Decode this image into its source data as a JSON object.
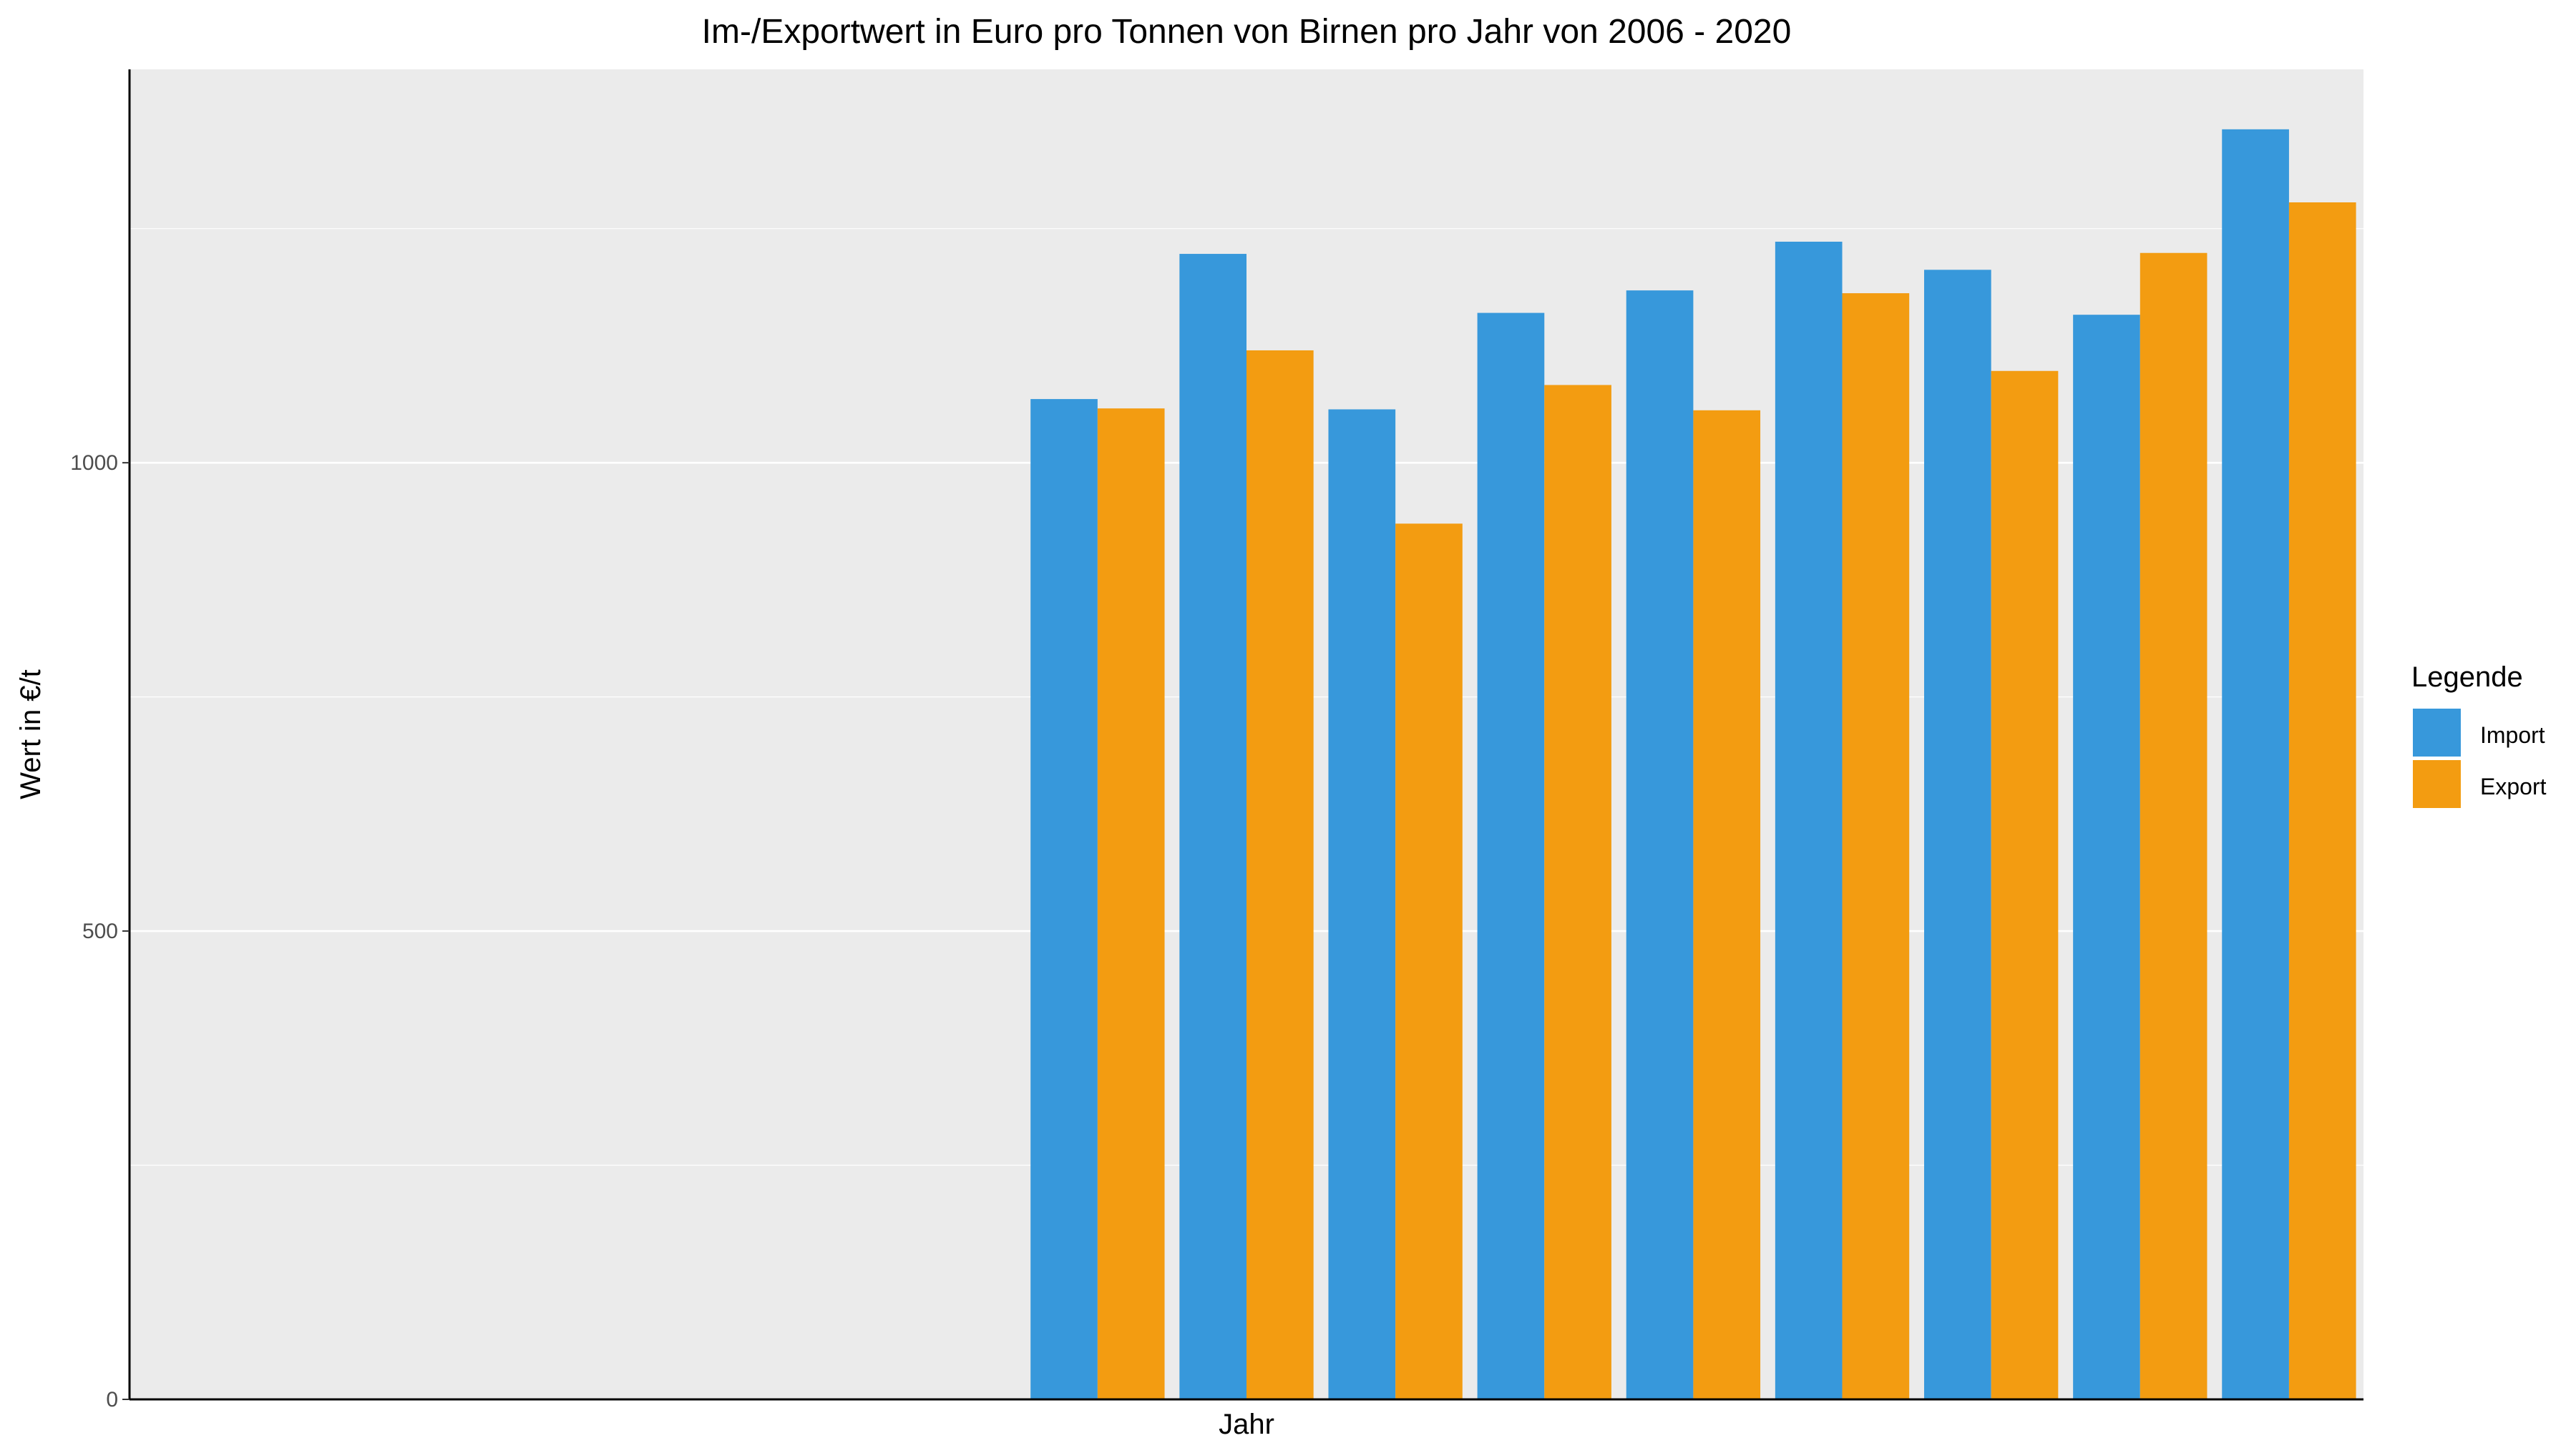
{
  "chart_data": {
    "type": "bar",
    "title": "Im-/Exportwert in Euro pro Tonnen von Birnen pro Jahr von 2006 - 2020",
    "xlabel": "Jahr",
    "ylabel": "Wert in €/t",
    "ylim": [
      0,
      1420
    ],
    "yticks": [
      0,
      500,
      1000
    ],
    "grid": true,
    "n_slots": 15,
    "categories": [
      "",
      "",
      "",
      "",
      "",
      "",
      "",
      "",
      "",
      "",
      "",
      "",
      "",
      "",
      ""
    ],
    "series": [
      {
        "name": "Import",
        "color": "#3798DB",
        "values": [
          null,
          null,
          null,
          null,
          null,
          null,
          1068,
          1223,
          1057,
          1160,
          1184,
          1236,
          1206,
          1158,
          1356
        ]
      },
      {
        "name": "Export",
        "color": "#F39C11",
        "values": [
          null,
          null,
          null,
          null,
          null,
          null,
          1058,
          1120,
          935,
          1083,
          1056,
          1181,
          1098,
          1224,
          1278
        ]
      }
    ],
    "legend": {
      "title": "Legende",
      "position": "right"
    }
  }
}
